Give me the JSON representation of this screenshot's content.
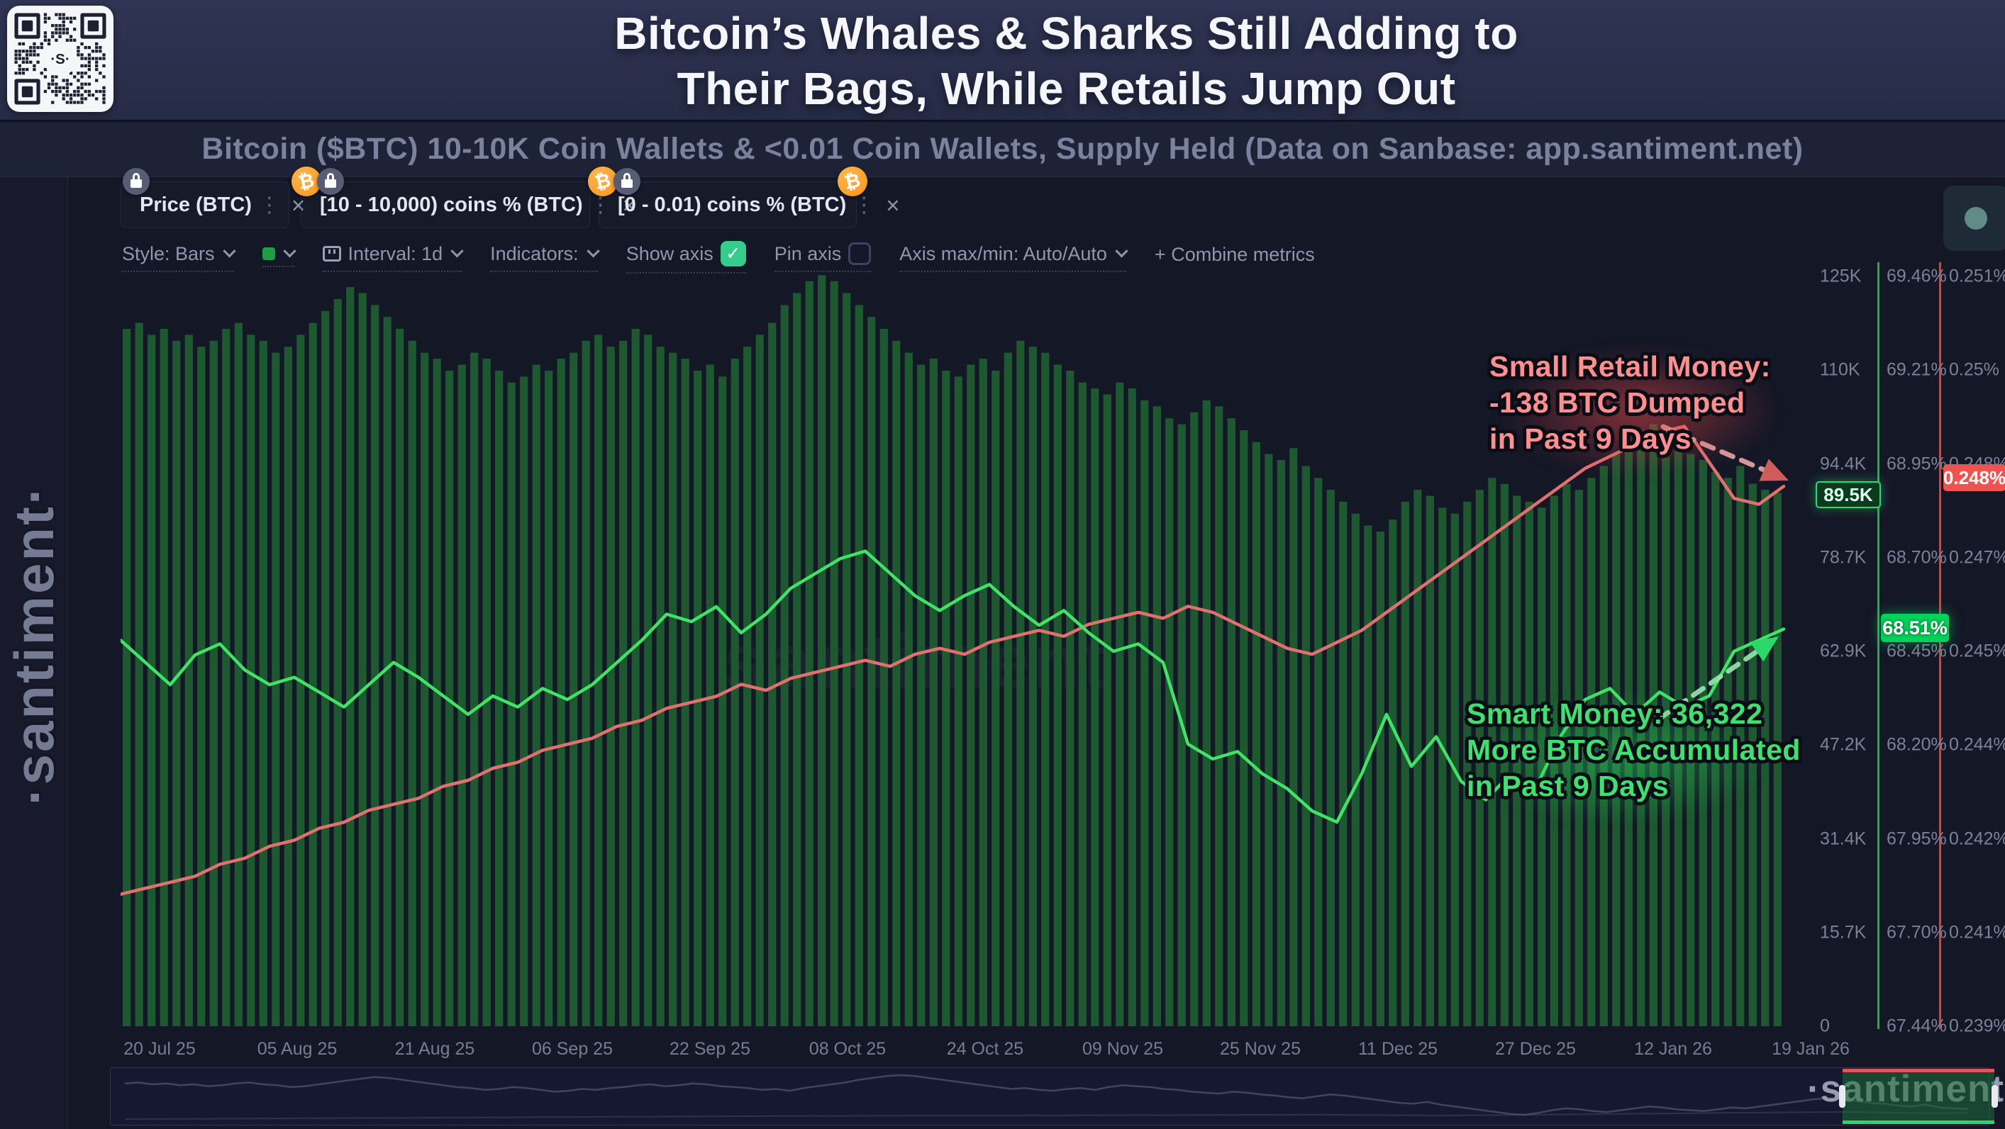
{
  "header": {
    "title_line1": "Bitcoin’s Whales & Sharks Still Adding to",
    "title_line2": "Their Bags, While Retails Jump Out",
    "subtitle": "Bitcoin ($BTC) 10-10K Coin Wallets & <0.01 Coin Wallets, Supply Held (Data on Sanbase: app.santiment.net)"
  },
  "branding": {
    "vertical_logo": "·santiment·",
    "chart_watermark": "santiment",
    "bottom_watermark": "·santiment·",
    "qr_center_label": "·S·"
  },
  "tabs": [
    {
      "label": "Price (BTC)",
      "indicator_color": "#1a9e3f",
      "badges": [
        "lock"
      ]
    },
    {
      "label": "[10 - 10,000) coins % (BTC)",
      "indicator_color": "#2de05f",
      "badges": [
        "btc",
        "lock"
      ]
    },
    {
      "label": "[0 - 0.01) coins % (BTC)",
      "indicator_color": "#ef5350",
      "badges": [
        "btc",
        "lock",
        "btc-right"
      ]
    }
  ],
  "toolbar": {
    "style": "Style: Bars",
    "swatch_color": "#1f9d44",
    "interval": "Interval: 1d",
    "indicators": "Indicators:",
    "show_axis": "Show axis",
    "show_axis_checked": true,
    "check_glyph": "✓",
    "pin_axis": "Pin axis",
    "pin_axis_checked": false,
    "axis_maxmin": "Axis max/min: Auto/Auto",
    "combine_metrics": "+ Combine metrics"
  },
  "annotations": {
    "retail": {
      "lines": [
        "Small Retail Money:",
        "-138 BTC Dumped",
        "in Past 9 Days"
      ],
      "color": "#ff8f8f"
    },
    "smart": {
      "lines": [
        "Smart Money: 36,322",
        "More BTC Accumulated",
        "in Past 9 Days"
      ],
      "color": "#3fe06f"
    }
  },
  "badges": {
    "price_current": "89.5K",
    "green_current": "68.51%",
    "red_current": "0.248%"
  },
  "colors": {
    "bars": "#1d5c30",
    "green_line": "#42e168",
    "red_line": "#e0716f",
    "green_axis": "#2da653",
    "red_axis": "#b15050",
    "badge_green": "#00d45b",
    "badge_red": "#ef5350",
    "checkbox_green": "#35cd8e",
    "bitcoin_orange": "#f7931a"
  },
  "chart_data": {
    "type": "mixed",
    "x_range": [
      "20 Jul 25",
      "19 Jan 26"
    ],
    "date_ticks": [
      "20 Jul 25",
      "05 Aug 25",
      "21 Aug 25",
      "06 Sep 25",
      "22 Sep 25",
      "08 Oct 25",
      "24 Oct 25",
      "09 Nov 25",
      "25 Nov 25",
      "11 Dec 25",
      "27 Dec 25",
      "12 Jan 26",
      "19 Jan 26"
    ],
    "grid": false,
    "legend_position": "tabs-top",
    "axes": {
      "price": {
        "side": "right-1",
        "ticks": [
          "125K",
          "110K",
          "94.4K",
          "78.7K",
          "62.9K",
          "47.2K",
          "31.4K",
          "15.7K",
          "0"
        ],
        "range_thousands_usd": [
          0,
          125.8
        ]
      },
      "whales": {
        "side": "right-2",
        "ticks": [
          "69.46%",
          "69.21%",
          "68.95%",
          "68.70%",
          "68.45%",
          "68.20%",
          "67.95%",
          "67.70%",
          "67.44%"
        ],
        "range_pct": [
          67.44,
          69.46
        ]
      },
      "retail": {
        "side": "right-3",
        "ticks": [
          "0.251%",
          "0.25%",
          "0.248%",
          "0.247%",
          "0.245%",
          "0.244%",
          "0.242%",
          "0.241%",
          "0.239%"
        ],
        "range_pct": [
          0.239,
          0.2515
        ]
      }
    },
    "series": [
      {
        "name": "Price (BTC)",
        "type": "bar",
        "axis": "price",
        "unit": "K USD",
        "color": "#1d5c30",
        "values": [
          117,
          118,
          116,
          117,
          115,
          116,
          114,
          115,
          117,
          118,
          116,
          115,
          113,
          114,
          116,
          118,
          120,
          122,
          124,
          123,
          121,
          119,
          117,
          115,
          113,
          112,
          110,
          111,
          113,
          112,
          110,
          108,
          109,
          111,
          110,
          112,
          113,
          115,
          116,
          114,
          115,
          117,
          116,
          114,
          113,
          112,
          110,
          111,
          109,
          112,
          114,
          116,
          118,
          121,
          123,
          125,
          126,
          125,
          123,
          121,
          119,
          117,
          115,
          113,
          111,
          112,
          110,
          109,
          111,
          112,
          110,
          113,
          115,
          114,
          113,
          111,
          110,
          108,
          107,
          106,
          108,
          107,
          105,
          104,
          102,
          101,
          103,
          105,
          104,
          102,
          100,
          98,
          96,
          95,
          97,
          94,
          92,
          90,
          88,
          86,
          84,
          83,
          85,
          88,
          90,
          89,
          87,
          86,
          88,
          90,
          92,
          91,
          89,
          88,
          87,
          89,
          91,
          90,
          92,
          94,
          96,
          98,
          100,
          101,
          100,
          98,
          96,
          95,
          93,
          92,
          94,
          91,
          90,
          89.5
        ]
      },
      {
        "name": "[10 - 10,000) coins % (BTC)",
        "type": "line",
        "axis": "whales",
        "unit": "%",
        "color": "#42e168",
        "values": [
          68.48,
          68.42,
          68.36,
          68.44,
          68.47,
          68.4,
          68.36,
          68.38,
          68.34,
          68.3,
          68.36,
          68.42,
          68.38,
          68.33,
          68.28,
          68.33,
          68.3,
          68.35,
          68.32,
          68.36,
          68.42,
          68.48,
          68.55,
          68.53,
          68.57,
          68.5,
          68.55,
          68.62,
          68.66,
          68.7,
          68.72,
          68.66,
          68.6,
          68.56,
          68.6,
          68.63,
          68.57,
          68.52,
          68.56,
          68.5,
          68.45,
          68.47,
          68.42,
          68.2,
          68.16,
          68.18,
          68.12,
          68.08,
          68.02,
          67.99,
          68.12,
          68.28,
          68.14,
          68.22,
          68.1,
          68.05,
          68.12,
          68.08,
          68.22,
          68.32,
          68.35,
          68.28,
          68.34,
          68.3,
          68.33,
          68.45,
          68.48,
          68.51
        ]
      },
      {
        "name": "[0 - 0.01) coins % (BTC)",
        "type": "line",
        "axis": "retail",
        "unit": "%",
        "color": "#e0716f",
        "values": [
          0.2412,
          0.2413,
          0.2414,
          0.2415,
          0.2417,
          0.2418,
          0.242,
          0.2421,
          0.2423,
          0.2424,
          0.2426,
          0.2427,
          0.2428,
          0.243,
          0.2431,
          0.2433,
          0.2434,
          0.2436,
          0.2437,
          0.2438,
          0.244,
          0.2441,
          0.2443,
          0.2444,
          0.2445,
          0.2447,
          0.2446,
          0.2448,
          0.2449,
          0.245,
          0.2451,
          0.245,
          0.2452,
          0.2453,
          0.2452,
          0.2454,
          0.2455,
          0.2456,
          0.2455,
          0.2457,
          0.2458,
          0.2459,
          0.2458,
          0.246,
          0.2459,
          0.2457,
          0.2455,
          0.2453,
          0.2452,
          0.2454,
          0.2456,
          0.2459,
          0.2462,
          0.2465,
          0.2468,
          0.2471,
          0.2474,
          0.2477,
          0.248,
          0.2483,
          0.2485,
          0.2487,
          0.2489,
          0.249,
          0.2484,
          0.2478,
          0.2477,
          0.248
        ]
      }
    ],
    "annotated_deltas": {
      "retail_btc_change_9d": -138,
      "smart_money_btc_change_9d": 36322
    }
  }
}
